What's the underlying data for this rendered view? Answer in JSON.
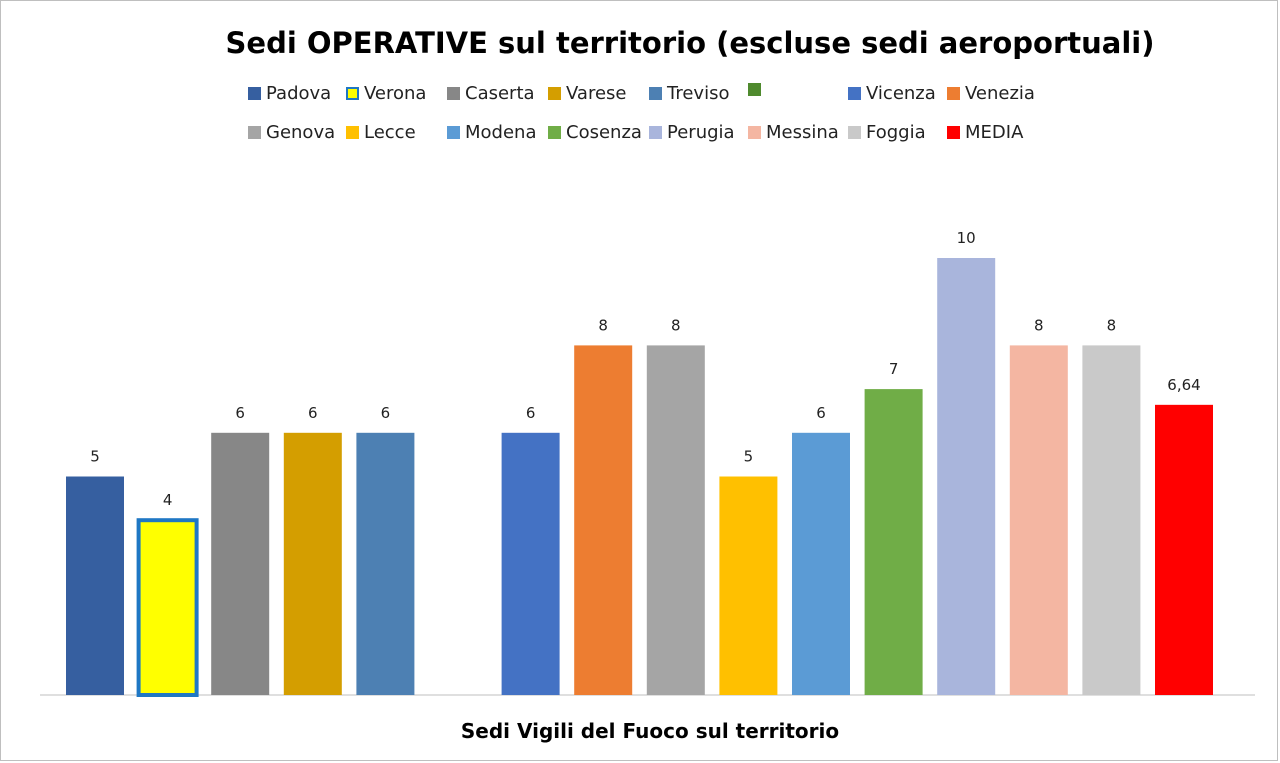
{
  "chart_data": {
    "type": "bar",
    "title": "Sedi OPERATIVE sul territorio (escluse sedi aeroportuali)",
    "xlabel": "Sedi Vigili del Fuoco sul territorio",
    "ylabel": "",
    "ylim": [
      0,
      10.5
    ],
    "grid": false,
    "legend_position": "top",
    "series": [
      {
        "name": "Padova",
        "value": 5,
        "label": "5",
        "color": "#365fa0"
      },
      {
        "name": "Verona",
        "value": 4,
        "label": "4",
        "color": "#ffff00",
        "border": "#1f77c4"
      },
      {
        "name": "Caserta",
        "value": 6,
        "label": "6",
        "color": "#878787"
      },
      {
        "name": "Varese",
        "value": 6,
        "label": "6",
        "color": "#d49e00"
      },
      {
        "name": "Treviso",
        "value": 6,
        "label": "6",
        "color": "#4d80b3"
      },
      {
        "name": "",
        "value": null,
        "label": "",
        "color": "#4f8a2e"
      },
      {
        "name": "Vicenza",
        "value": 6,
        "label": "6",
        "color": "#4472c4"
      },
      {
        "name": "Venezia",
        "value": 8,
        "label": "8",
        "color": "#ed7d31"
      },
      {
        "name": "Genova",
        "value": 8,
        "label": "8",
        "color": "#a5a5a5"
      },
      {
        "name": "Lecce",
        "value": 5,
        "label": "5",
        "color": "#ffc000"
      },
      {
        "name": "Modena",
        "value": 6,
        "label": "6",
        "color": "#5b9bd5"
      },
      {
        "name": "Cosenza",
        "value": 7,
        "label": "7",
        "color": "#70ad47"
      },
      {
        "name": "Perugia",
        "value": 10,
        "label": "10",
        "color": "#a9b5dc"
      },
      {
        "name": "Messina",
        "value": 8,
        "label": "8",
        "color": "#f4b6a2"
      },
      {
        "name": "Foggia",
        "value": 8,
        "label": "8",
        "color": "#c9c9c9"
      },
      {
        "name": "MEDIA",
        "value": 6.64,
        "label": "6,64",
        "color": "#ff0000"
      }
    ]
  }
}
